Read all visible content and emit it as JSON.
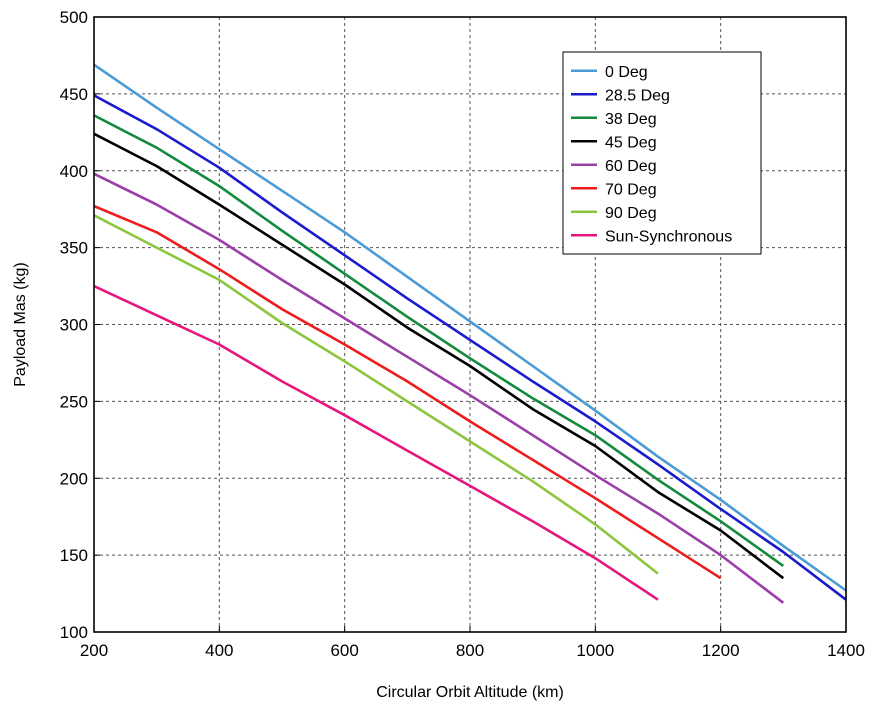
{
  "chart_data": {
    "type": "line",
    "title": "",
    "xlabel": "Circular Orbit Altitude (km)",
    "ylabel": "Payload Mas (kg)",
    "xlim": [
      200,
      1400
    ],
    "ylim": [
      100,
      500
    ],
    "xticks": [
      200,
      400,
      600,
      800,
      1000,
      1200,
      1400
    ],
    "yticks": [
      100,
      150,
      200,
      250,
      300,
      350,
      400,
      450,
      500
    ],
    "grid": true,
    "grid_style": "dashed",
    "legend_position": "top-right",
    "series": [
      {
        "name": "0 Deg",
        "color": "#4A9BD6",
        "points": [
          [
            200,
            469
          ],
          [
            300,
            441
          ],
          [
            400,
            414
          ],
          [
            500,
            387
          ],
          [
            600,
            360
          ],
          [
            700,
            331
          ],
          [
            800,
            302
          ],
          [
            900,
            273
          ],
          [
            1000,
            244
          ],
          [
            1100,
            214
          ],
          [
            1200,
            186
          ],
          [
            1300,
            156
          ],
          [
            1400,
            127
          ]
        ]
      },
      {
        "name": "28.5 Deg",
        "color": "#1A1ACF",
        "points": [
          [
            200,
            449
          ],
          [
            300,
            427
          ],
          [
            400,
            402
          ],
          [
            500,
            373
          ],
          [
            600,
            345
          ],
          [
            700,
            317
          ],
          [
            800,
            290
          ],
          [
            900,
            263
          ],
          [
            1000,
            237
          ],
          [
            1100,
            209
          ],
          [
            1200,
            180
          ],
          [
            1300,
            152
          ],
          [
            1400,
            121
          ]
        ]
      },
      {
        "name": "38 Deg",
        "color": "#138A3C",
        "points": [
          [
            200,
            436
          ],
          [
            300,
            415
          ],
          [
            400,
            390
          ],
          [
            500,
            361
          ],
          [
            600,
            333
          ],
          [
            700,
            305
          ],
          [
            800,
            278
          ],
          [
            900,
            252
          ],
          [
            1000,
            228
          ],
          [
            1100,
            199
          ],
          [
            1200,
            172
          ],
          [
            1300,
            143
          ]
        ]
      },
      {
        "name": "45 Deg",
        "color": "#000000",
        "points": [
          [
            200,
            424
          ],
          [
            300,
            403
          ],
          [
            400,
            378
          ],
          [
            500,
            352
          ],
          [
            600,
            326
          ],
          [
            700,
            298
          ],
          [
            800,
            273
          ],
          [
            900,
            245
          ],
          [
            1000,
            221
          ],
          [
            1100,
            191
          ],
          [
            1200,
            166
          ],
          [
            1300,
            135
          ]
        ]
      },
      {
        "name": "60 Deg",
        "color": "#9B3FA8",
        "points": [
          [
            200,
            398
          ],
          [
            300,
            378
          ],
          [
            400,
            355
          ],
          [
            500,
            329
          ],
          [
            600,
            304
          ],
          [
            700,
            279
          ],
          [
            800,
            254
          ],
          [
            900,
            228
          ],
          [
            1000,
            202
          ],
          [
            1100,
            177
          ],
          [
            1200,
            150
          ],
          [
            1300,
            119
          ]
        ]
      },
      {
        "name": "70 Deg",
        "color": "#EE1C1C",
        "points": [
          [
            200,
            377
          ],
          [
            300,
            360
          ],
          [
            400,
            336
          ],
          [
            500,
            310
          ],
          [
            600,
            287
          ],
          [
            700,
            263
          ],
          [
            800,
            237
          ],
          [
            900,
            212
          ],
          [
            1000,
            187
          ],
          [
            1100,
            161
          ],
          [
            1200,
            135
          ]
        ]
      },
      {
        "name": "90 Deg",
        "color": "#8CC63F",
        "points": [
          [
            200,
            371
          ],
          [
            300,
            350
          ],
          [
            400,
            329
          ],
          [
            500,
            301
          ],
          [
            600,
            276
          ],
          [
            700,
            250
          ],
          [
            800,
            224
          ],
          [
            900,
            198
          ],
          [
            1000,
            170
          ],
          [
            1100,
            138
          ]
        ]
      },
      {
        "name": "Sun-Synchronous",
        "color": "#E6167D",
        "points": [
          [
            200,
            325
          ],
          [
            300,
            306
          ],
          [
            400,
            287
          ],
          [
            500,
            263
          ],
          [
            600,
            241
          ],
          [
            700,
            218
          ],
          [
            800,
            195
          ],
          [
            900,
            172
          ],
          [
            1000,
            148
          ],
          [
            1100,
            121
          ]
        ]
      }
    ]
  }
}
